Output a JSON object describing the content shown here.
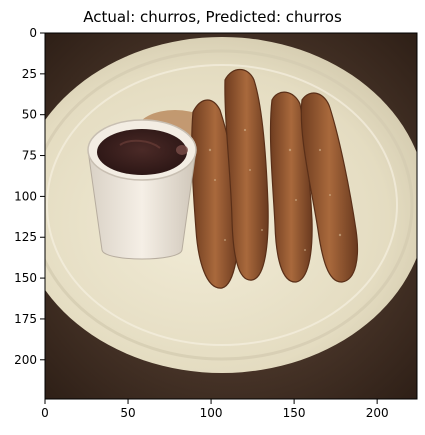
{
  "figure": {
    "title": "Actual: churros, Predicted: churros"
  },
  "axes": {
    "x_ticks": [
      "0",
      "50",
      "100",
      "150",
      "200"
    ],
    "y_ticks": [
      "0",
      "25",
      "50",
      "75",
      "100",
      "125",
      "150",
      "175",
      "200"
    ],
    "xlim": [
      0,
      224
    ],
    "ylim": [
      224,
      0
    ]
  },
  "image": {
    "subject": "churros with chocolate dipping cup on a plate",
    "dominant_colors": {
      "background": "#3a2a1f",
      "plate": "#e8e1c8",
      "churro": "#9a5a30",
      "chocolate": "#3a1f1c",
      "cup": "#efe8dc"
    }
  }
}
